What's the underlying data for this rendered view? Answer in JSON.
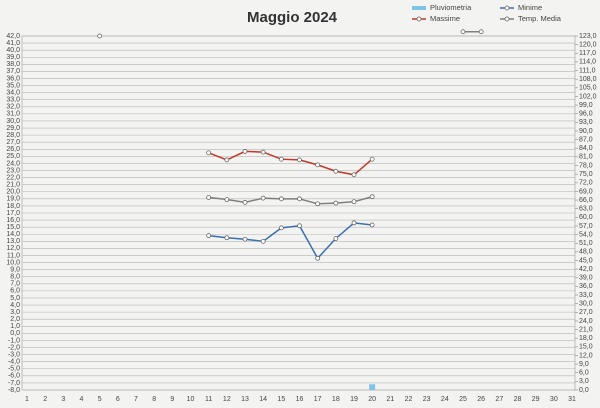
{
  "chart_data": {
    "type": "line",
    "title": "Maggio 2024",
    "categories": [
      1,
      2,
      3,
      4,
      5,
      6,
      7,
      8,
      9,
      10,
      11,
      12,
      13,
      14,
      15,
      16,
      17,
      18,
      19,
      20,
      21,
      22,
      23,
      24,
      25,
      26,
      27,
      28,
      29,
      30,
      31
    ],
    "series": [
      {
        "name": "Pluviometria",
        "type": "bar",
        "axis": "y2",
        "color": "#7ec3e8",
        "values": [
          null,
          null,
          null,
          null,
          null,
          null,
          null,
          null,
          null,
          null,
          null,
          null,
          null,
          null,
          null,
          null,
          null,
          null,
          null,
          2,
          null,
          null,
          null,
          null,
          null,
          null,
          null,
          null,
          null,
          null,
          null
        ]
      },
      {
        "name": "Minime",
        "color": "#3a6fb0",
        "values": [
          null,
          null,
          null,
          null,
          null,
          null,
          null,
          null,
          null,
          null,
          13.8,
          13.5,
          13.3,
          13.0,
          14.9,
          15.2,
          10.6,
          13.4,
          15.6,
          15.3,
          null,
          null,
          null,
          null,
          null,
          null,
          null,
          null,
          null,
          null,
          null
        ]
      },
      {
        "name": "Massime",
        "color": "#c0392b",
        "values": [
          null,
          null,
          null,
          null,
          null,
          null,
          null,
          null,
          null,
          null,
          25.5,
          24.5,
          25.7,
          25.6,
          24.6,
          24.5,
          23.8,
          22.9,
          22.4,
          24.6,
          null,
          null,
          null,
          null,
          null,
          null,
          null,
          null,
          null,
          null,
          null
        ]
      },
      {
        "name": "Temp. Media",
        "color": "#7f7f7f",
        "values": [
          null,
          null,
          null,
          null,
          42.0,
          null,
          null,
          null,
          null,
          null,
          19.2,
          18.9,
          18.5,
          19.1,
          19.0,
          19.0,
          18.3,
          18.4,
          18.6,
          19.3,
          null,
          null,
          null,
          null,
          42.6,
          42.6,
          null,
          null,
          null,
          null,
          null
        ]
      }
    ],
    "legend": "top-right",
    "grid": true,
    "ylim": [
      -8,
      42
    ],
    "yticks": [
      {
        "value": -8,
        "label": "-8,0"
      },
      {
        "value": -7,
        "label": "-7,0"
      },
      {
        "value": -6,
        "label": "-6,0"
      },
      {
        "value": -5,
        "label": "-5,0"
      },
      {
        "value": -4,
        "label": "-4,0"
      },
      {
        "value": -3,
        "label": "-3,0"
      },
      {
        "value": -2,
        "label": "-2,0"
      },
      {
        "value": -1,
        "label": "-1,0"
      },
      {
        "value": 0,
        "label": "0,0"
      },
      {
        "value": 1,
        "label": "1,0"
      },
      {
        "value": 2,
        "label": "2,0"
      },
      {
        "value": 3,
        "label": "3,0"
      },
      {
        "value": 4,
        "label": "4,0"
      },
      {
        "value": 5,
        "label": "5,0"
      },
      {
        "value": 6,
        "label": "6,0"
      },
      {
        "value": 7,
        "label": "7,0"
      },
      {
        "value": 8,
        "label": "8,0"
      },
      {
        "value": 9,
        "label": "9,0"
      },
      {
        "value": 10,
        "label": "10,0"
      },
      {
        "value": 11,
        "label": "11,0"
      },
      {
        "value": 12,
        "label": "12,0"
      },
      {
        "value": 13,
        "label": "13,0"
      },
      {
        "value": 14,
        "label": "14,0"
      },
      {
        "value": 15,
        "label": "15,0"
      },
      {
        "value": 16,
        "label": "16,0"
      },
      {
        "value": 17,
        "label": "17,0"
      },
      {
        "value": 18,
        "label": "18,0"
      },
      {
        "value": 19,
        "label": "19,0"
      },
      {
        "value": 20,
        "label": "20,0"
      },
      {
        "value": 21,
        "label": "21,0"
      },
      {
        "value": 22,
        "label": "22,0"
      },
      {
        "value": 23,
        "label": "23,0"
      },
      {
        "value": 24,
        "label": "24,0"
      },
      {
        "value": 25,
        "label": "25,0"
      },
      {
        "value": 26,
        "label": "26,0"
      },
      {
        "value": 27,
        "label": "27,0"
      },
      {
        "value": 28,
        "label": "28,0"
      },
      {
        "value": 29,
        "label": "29,0"
      },
      {
        "value": 30,
        "label": "30,0"
      },
      {
        "value": 31,
        "label": "31,0"
      },
      {
        "value": 32,
        "label": "32,0"
      },
      {
        "value": 33,
        "label": "33,0"
      },
      {
        "value": 34,
        "label": "34,0"
      },
      {
        "value": 35,
        "label": "35,0"
      },
      {
        "value": 36,
        "label": "36,0"
      },
      {
        "value": 37,
        "label": "37,0"
      },
      {
        "value": 38,
        "label": "38,0"
      },
      {
        "value": 39,
        "label": "39,0"
      },
      {
        "value": 40,
        "label": "40,0"
      },
      {
        "value": 41,
        "label": "41,0"
      },
      {
        "value": 42,
        "label": "42,0"
      }
    ],
    "y2lim": [
      0,
      123
    ],
    "y2ticks": [
      {
        "value": 0,
        "label": "0,0"
      },
      {
        "value": 3,
        "label": "3,0"
      },
      {
        "value": 6,
        "label": "6,0"
      },
      {
        "value": 9,
        "label": "9,0"
      },
      {
        "value": 12,
        "label": "12,0"
      },
      {
        "value": 15,
        "label": "15,0"
      },
      {
        "value": 18,
        "label": "18,0"
      },
      {
        "value": 21,
        "label": "21,0"
      },
      {
        "value": 24,
        "label": "24,0"
      },
      {
        "value": 27,
        "label": "27,0"
      },
      {
        "value": 30,
        "label": "30,0"
      },
      {
        "value": 33,
        "label": "33,0"
      },
      {
        "value": 36,
        "label": "36,0"
      },
      {
        "value": 39,
        "label": "39,0"
      },
      {
        "value": 42,
        "label": "42,0"
      },
      {
        "value": 45,
        "label": "45,0"
      },
      {
        "value": 48,
        "label": "48,0"
      },
      {
        "value": 51,
        "label": "51,0"
      },
      {
        "value": 54,
        "label": "54,0"
      },
      {
        "value": 57,
        "label": "57,0"
      },
      {
        "value": 60,
        "label": "60,0"
      },
      {
        "value": 63,
        "label": "63,0"
      },
      {
        "value": 66,
        "label": "66,0"
      },
      {
        "value": 69,
        "label": "69,0"
      },
      {
        "value": 72,
        "label": "72,0"
      },
      {
        "value": 75,
        "label": "75,0"
      },
      {
        "value": 78,
        "label": "78,0"
      },
      {
        "value": 81,
        "label": "81,0"
      },
      {
        "value": 84,
        "label": "84,0"
      },
      {
        "value": 87,
        "label": "87,0"
      },
      {
        "value": 90,
        "label": "90,0"
      },
      {
        "value": 93,
        "label": "93,0"
      },
      {
        "value": 96,
        "label": "96,0"
      },
      {
        "value": 99,
        "label": "99,0"
      },
      {
        "value": 102,
        "label": "102,0"
      },
      {
        "value": 105,
        "label": "105,0"
      },
      {
        "value": 108,
        "label": "108,0"
      },
      {
        "value": 111,
        "label": "111,0"
      },
      {
        "value": 114,
        "label": "114,0"
      },
      {
        "value": 117,
        "label": "117,0"
      },
      {
        "value": 120,
        "label": "120,0"
      },
      {
        "value": 123,
        "label": "123,0"
      }
    ]
  }
}
